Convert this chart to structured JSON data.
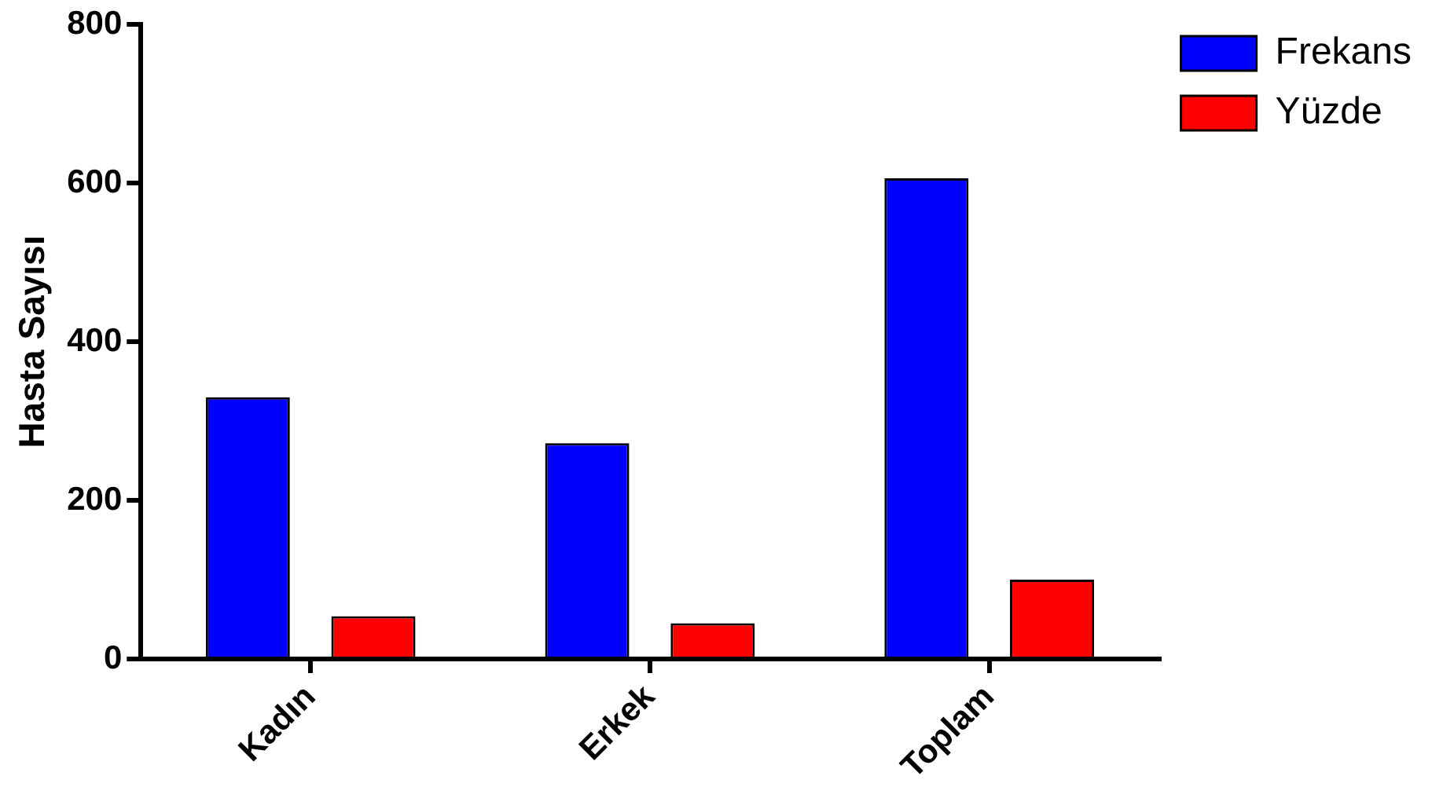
{
  "chart_data": {
    "type": "bar",
    "ylabel": "Hasta Sayısı",
    "categories": [
      "Kadın",
      "Erkek",
      "Toplam"
    ],
    "series": [
      {
        "name": "Frekans",
        "color": "#0000ff",
        "values": [
          330,
          272,
          606
        ]
      },
      {
        "name": "Yüzde",
        "color": "#ff0000",
        "values": [
          54,
          45,
          100
        ]
      }
    ],
    "ylim": [
      0,
      800
    ],
    "yticks": [
      0,
      200,
      400,
      600,
      800
    ],
    "legend": "top right"
  }
}
